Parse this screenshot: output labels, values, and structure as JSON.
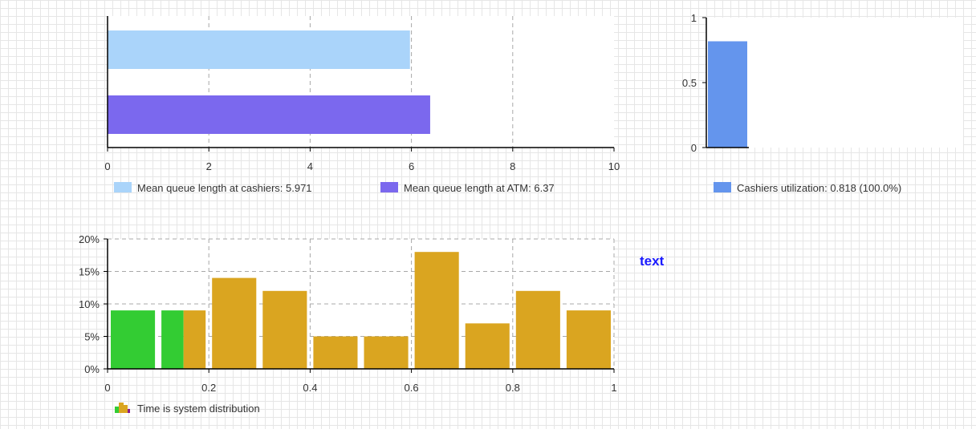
{
  "chart_data": [
    {
      "type": "bar",
      "orientation": "horizontal",
      "categories": [
        "Mean queue length at cashiers",
        "Mean queue length at ATM"
      ],
      "series": [
        {
          "name": "Mean queue length at cashiers: 5.971",
          "value": 5.971,
          "color": "#aad4fa"
        },
        {
          "name": "Mean queue length at ATM: 6.37",
          "value": 6.37,
          "color": "#7b68ee"
        }
      ],
      "xlim": [
        0,
        10
      ],
      "xticks": [
        "0",
        "2",
        "4",
        "6",
        "8",
        "10"
      ],
      "grid": true,
      "legend_placement": "bottom"
    },
    {
      "type": "bar",
      "series": [
        {
          "name": "Cashiers utilization: 0.818 (100.0%)",
          "value": 0.818,
          "color": "#6495ed"
        }
      ],
      "ylim": [
        0,
        1
      ],
      "yticks": [
        "0",
        "0.5",
        "1"
      ],
      "legend_placement": "bottom"
    },
    {
      "type": "bar",
      "subtype": "histogram",
      "series_name": "Time is system distribution",
      "bins": [
        {
          "from": 0.0,
          "to": 0.1,
          "value": 9,
          "color": "#33cc33"
        },
        {
          "from": 0.1,
          "to": 0.2,
          "value": 9,
          "color": "#33cc33",
          "split_at": 0.15,
          "split_color": "#daa520"
        },
        {
          "from": 0.2,
          "to": 0.3,
          "value": 14,
          "color": "#daa520"
        },
        {
          "from": 0.3,
          "to": 0.4,
          "value": 12,
          "color": "#daa520"
        },
        {
          "from": 0.4,
          "to": 0.5,
          "value": 5,
          "color": "#daa520"
        },
        {
          "from": 0.5,
          "to": 0.6,
          "value": 5,
          "color": "#daa520"
        },
        {
          "from": 0.6,
          "to": 0.7,
          "value": 18,
          "color": "#daa520"
        },
        {
          "from": 0.7,
          "to": 0.8,
          "value": 7,
          "color": "#daa520"
        },
        {
          "from": 0.8,
          "to": 0.9,
          "value": 12,
          "color": "#daa520"
        },
        {
          "from": 0.9,
          "to": 1.0,
          "value": 9,
          "color": "#daa520"
        }
      ],
      "xlim": [
        0,
        1
      ],
      "xticks": [
        "0",
        "0.2",
        "0.4",
        "0.6",
        "0.8",
        "1"
      ],
      "ylim": [
        0,
        20
      ],
      "yticks": [
        "0%",
        "5%",
        "10%",
        "15%",
        "20%"
      ],
      "grid": true,
      "legend_placement": "bottom"
    }
  ],
  "free_text": "text",
  "colors": {
    "axis": "#000000",
    "grid": "#a8a8a8",
    "tick_text": "#333333",
    "free_text": "#1a1aff"
  }
}
